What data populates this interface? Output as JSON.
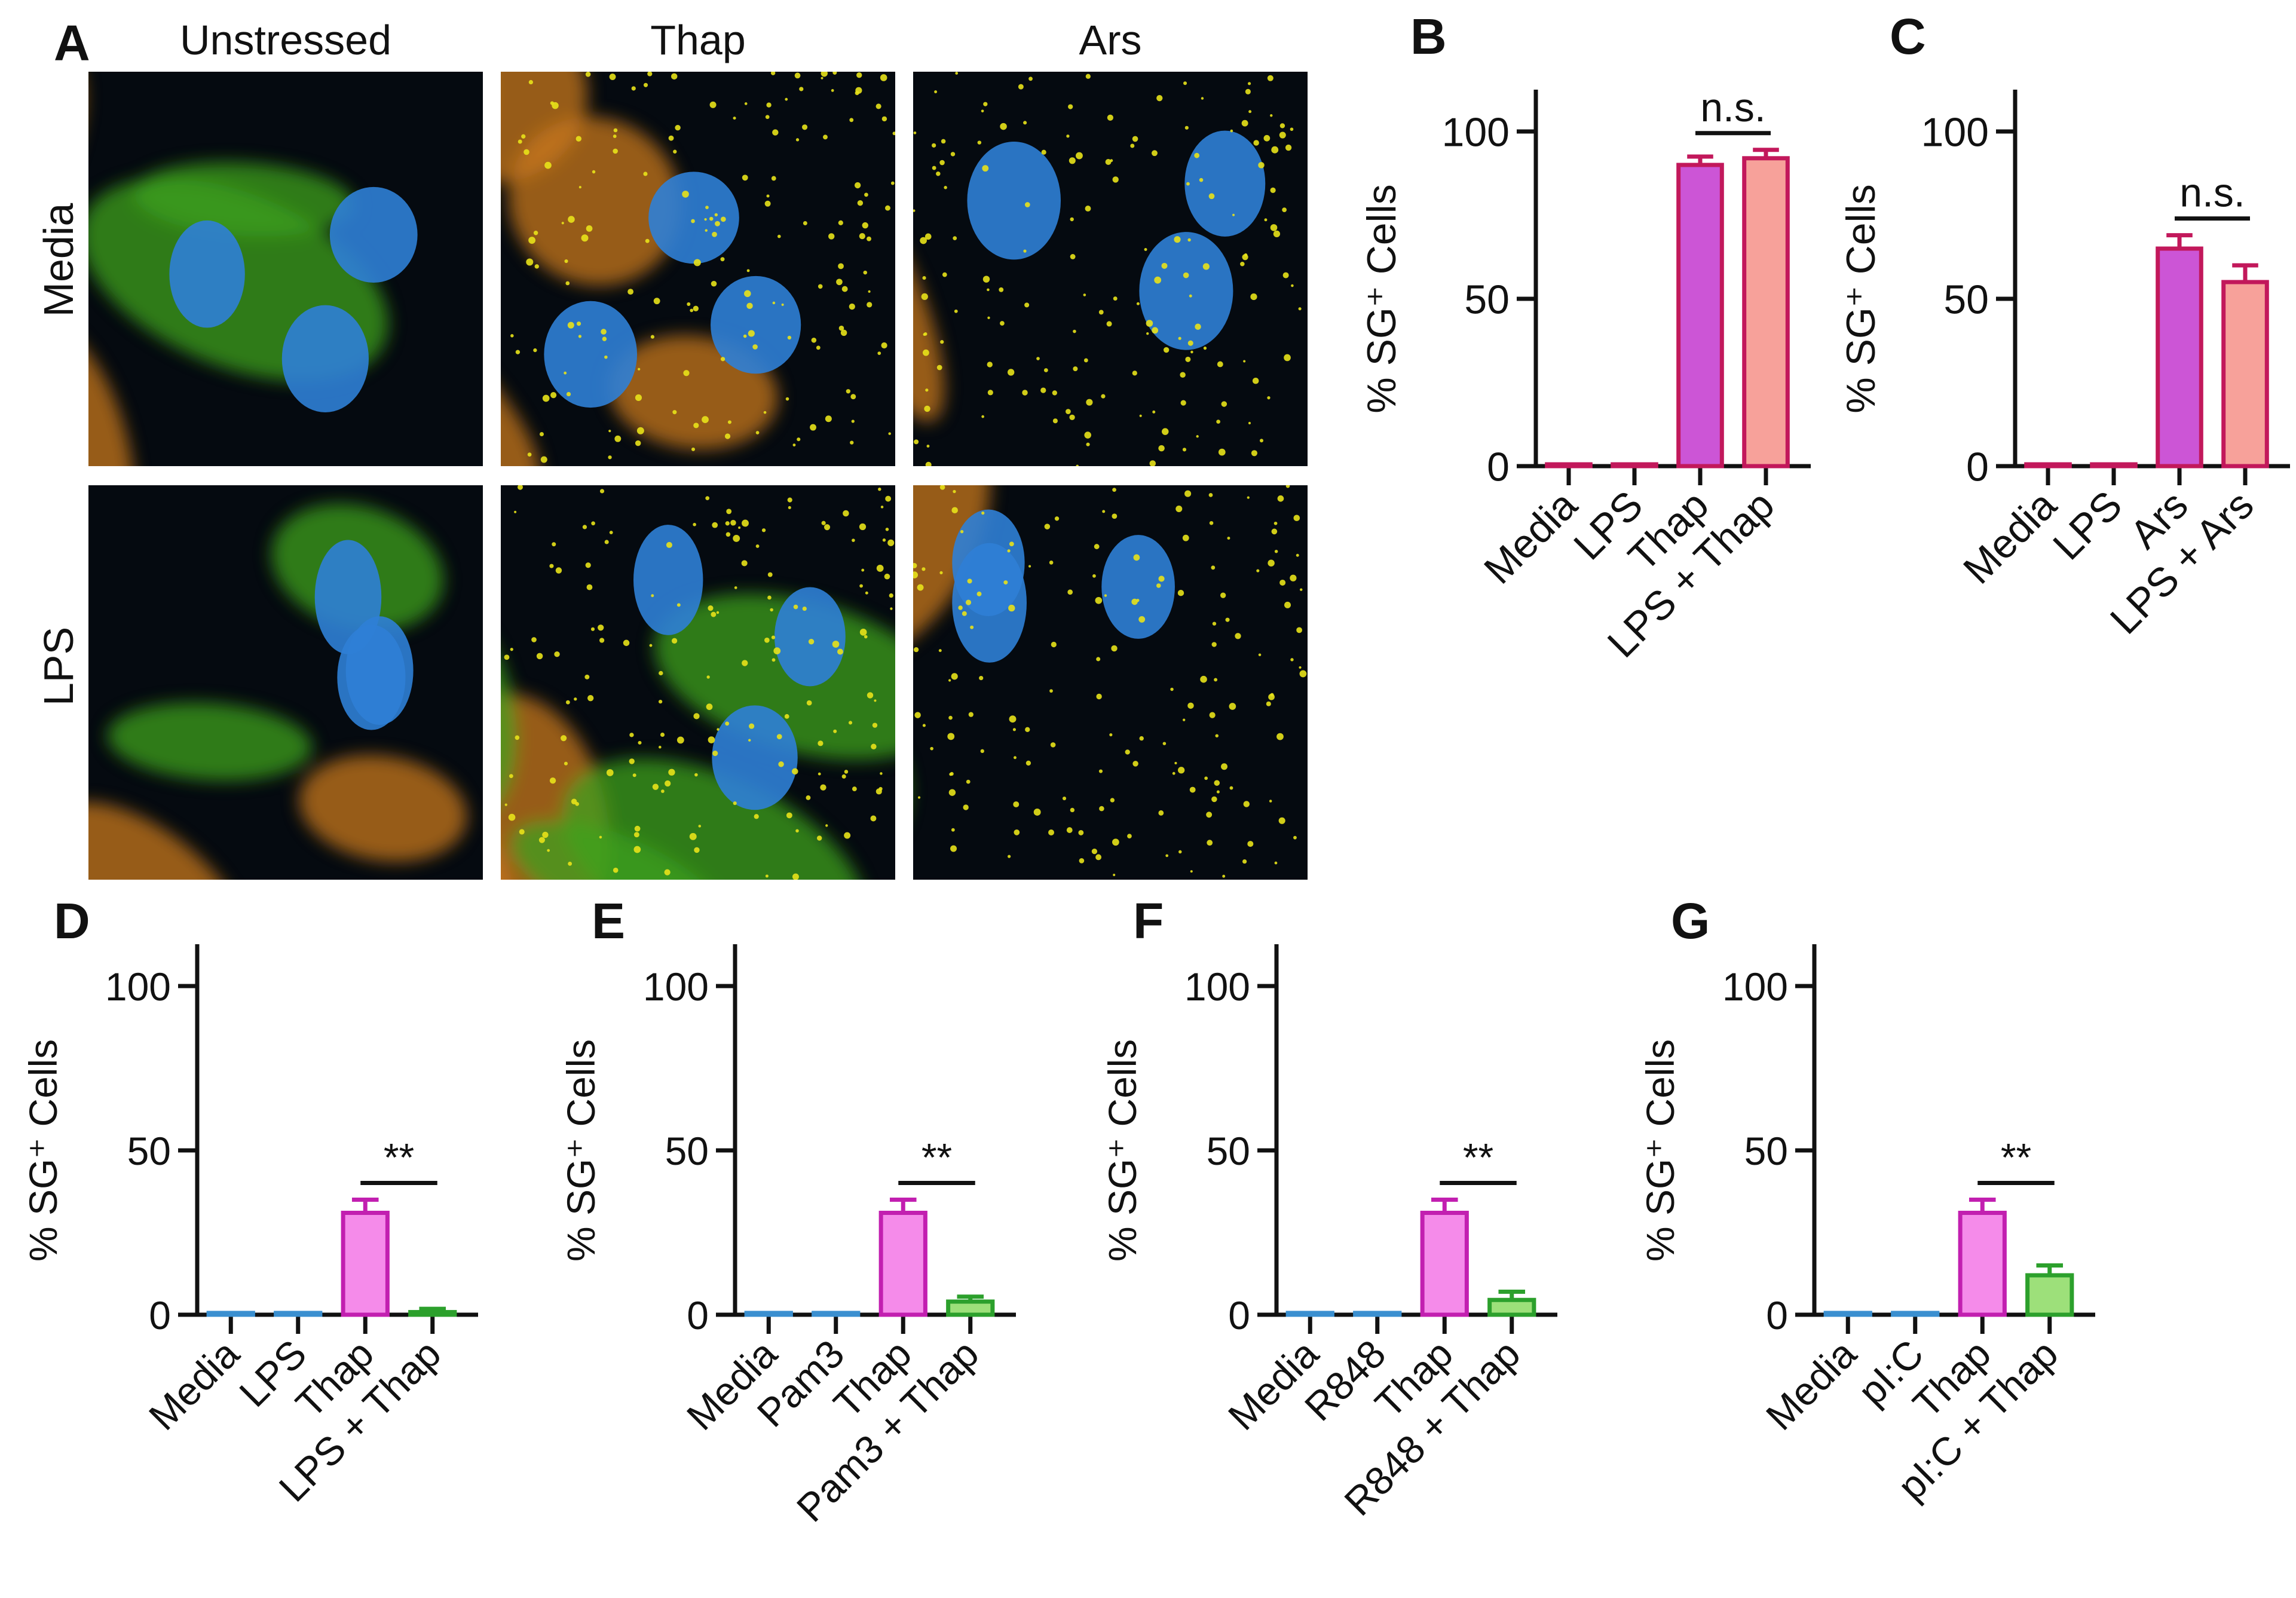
{
  "figure": {
    "panel_a": {
      "letter": "A",
      "columns": [
        "Unstressed",
        "Thap",
        "Ars"
      ],
      "rows": [
        "Media",
        "LPS"
      ],
      "stain_colors": {
        "background": "#050a10",
        "cytoplasm_green": "#3fa21c",
        "granules_yellow": "#e8e21a",
        "diffuse_orange": "#c8781e",
        "nuclei_blue": "#2f7fd6"
      }
    }
  },
  "chart_data": [
    {
      "letter": "B",
      "type": "bar",
      "ylabel": "% SG⁺ Cells",
      "ylim": [
        0,
        100
      ],
      "yticks": [
        0,
        50,
        100
      ],
      "categories": [
        "Media",
        "LPS",
        "Thap",
        "LPS + Thap"
      ],
      "values": [
        0,
        0,
        90,
        92
      ],
      "errors": [
        0,
        0,
        2.5,
        2.5
      ],
      "fills": [
        "#cc55d6",
        "#cc55d6",
        "#cc55d6",
        "#f7a19a"
      ],
      "strokes": [
        "#c2185b",
        "#c2185b",
        "#c2185b",
        "#c2185b"
      ],
      "significance": {
        "from": 2,
        "to": 3,
        "label": "n.s."
      }
    },
    {
      "letter": "C",
      "type": "bar",
      "ylabel": "% SG⁺ Cells",
      "ylim": [
        0,
        100
      ],
      "yticks": [
        0,
        50,
        100
      ],
      "categories": [
        "Media",
        "LPS",
        "Ars",
        "LPS + Ars"
      ],
      "values": [
        0,
        0,
        65,
        55
      ],
      "errors": [
        0,
        0,
        4,
        5
      ],
      "fills": [
        "#cc55d6",
        "#cc55d6",
        "#cc55d6",
        "#f7a19a"
      ],
      "strokes": [
        "#c2185b",
        "#c2185b",
        "#c2185b",
        "#c2185b"
      ],
      "significance": {
        "from": 2,
        "to": 3,
        "label": "n.s."
      }
    },
    {
      "letter": "D",
      "type": "bar",
      "ylabel": "% SG⁺ Cells",
      "ylim": [
        0,
        100
      ],
      "yticks": [
        0,
        50,
        100
      ],
      "categories": [
        "Media",
        "LPS",
        "Thap",
        "LPS + Thap"
      ],
      "values": [
        0.4,
        0,
        31,
        0.8
      ],
      "errors": [
        0,
        0,
        4,
        1
      ],
      "fills": [
        "#3a8fd0",
        "#3a8fd0",
        "#f58bea",
        "#9de07a"
      ],
      "strokes": [
        "#3a8fd0",
        "#3a8fd0",
        "#c21fb0",
        "#2ca02c"
      ],
      "significance": {
        "from": 2,
        "to": 3,
        "label": "**"
      }
    },
    {
      "letter": "E",
      "type": "bar",
      "ylabel": "% SG⁺ Cells",
      "ylim": [
        0,
        100
      ],
      "yticks": [
        0,
        50,
        100
      ],
      "categories": [
        "Media",
        "Pam3",
        "Thap",
        "Pam3 + Thap"
      ],
      "values": [
        0.4,
        0.2,
        31,
        4
      ],
      "errors": [
        0,
        0,
        4,
        1.5
      ],
      "fills": [
        "#3a8fd0",
        "#3a8fd0",
        "#f58bea",
        "#9de07a"
      ],
      "strokes": [
        "#3a8fd0",
        "#3a8fd0",
        "#c21fb0",
        "#2ca02c"
      ],
      "significance": {
        "from": 2,
        "to": 3,
        "label": "**"
      }
    },
    {
      "letter": "F",
      "type": "bar",
      "ylabel": "% SG⁺ Cells",
      "ylim": [
        0,
        100
      ],
      "yticks": [
        0,
        50,
        100
      ],
      "categories": [
        "Media",
        "R848",
        "Thap",
        "R848 + Thap"
      ],
      "values": [
        0.4,
        0.2,
        31,
        4.5
      ],
      "errors": [
        0,
        0,
        4,
        2.5
      ],
      "fills": [
        "#3a8fd0",
        "#3a8fd0",
        "#f58bea",
        "#9de07a"
      ],
      "strokes": [
        "#3a8fd0",
        "#3a8fd0",
        "#c21fb0",
        "#2ca02c"
      ],
      "significance": {
        "from": 2,
        "to": 3,
        "label": "**"
      }
    },
    {
      "letter": "G",
      "type": "bar",
      "ylabel": "% SG⁺ Cells",
      "ylim": [
        0,
        100
      ],
      "yticks": [
        0,
        50,
        100
      ],
      "categories": [
        "Media",
        "pI:C",
        "Thap",
        "pI:C + Thap"
      ],
      "values": [
        0.4,
        0.2,
        31,
        12
      ],
      "errors": [
        0,
        0,
        4,
        3
      ],
      "fills": [
        "#3a8fd0",
        "#3a8fd0",
        "#f58bea",
        "#9de07a"
      ],
      "strokes": [
        "#3a8fd0",
        "#3a8fd0",
        "#c21fb0",
        "#2ca02c"
      ],
      "significance": {
        "from": 2,
        "to": 3,
        "label": "**"
      }
    }
  ]
}
